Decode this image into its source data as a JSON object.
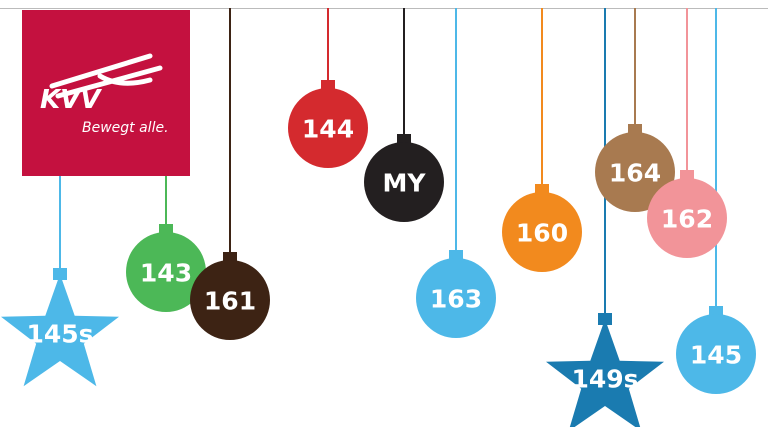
{
  "logo": {
    "name": "KVV",
    "tagline": "Bewegt alle."
  },
  "ornaments": [
    {
      "label": "145s"
    },
    {
      "label": "143"
    },
    {
      "label": "161"
    },
    {
      "label": "144"
    },
    {
      "label": "MY"
    },
    {
      "label": "163"
    },
    {
      "label": "160"
    },
    {
      "label": "149s"
    },
    {
      "label": "164"
    },
    {
      "label": "162"
    },
    {
      "label": "145"
    }
  ]
}
